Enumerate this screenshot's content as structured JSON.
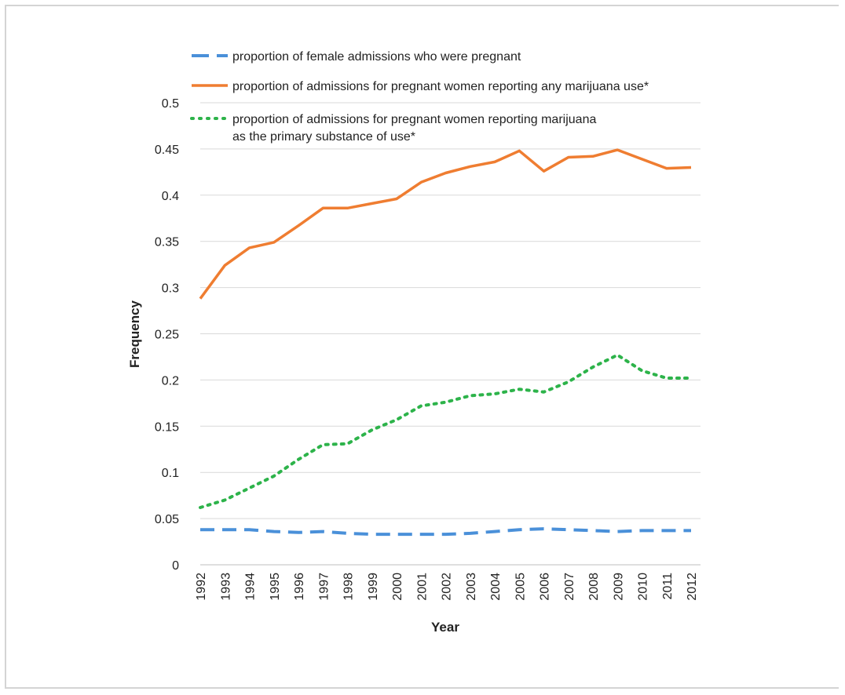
{
  "chart_data": {
    "type": "line",
    "xlabel": "Year",
    "ylabel": "Frequency",
    "ylim": [
      0,
      0.5
    ],
    "yticks": [
      "0",
      "0.05",
      "0.1",
      "0.15",
      "0.2",
      "0.25",
      "0.3",
      "0.35",
      "0.4",
      "0.45",
      "0.5"
    ],
    "grid": "horizontal",
    "legend_position": "top",
    "categories": [
      "1992",
      "1993",
      "1994",
      "1995",
      "1996",
      "1997",
      "1998",
      "1999",
      "2000",
      "2001",
      "2002",
      "2003",
      "2004",
      "2005",
      "2006",
      "2007",
      "2008",
      "2009",
      "2010",
      "2011",
      "2012"
    ],
    "series": [
      {
        "name": "proportion of female admissions who were pregnant",
        "legend_lines": [
          "proportion of female admissions who were pregnant"
        ],
        "color": "#4a90d9",
        "style": "dashed",
        "values": [
          0.038,
          0.038,
          0.038,
          0.036,
          0.035,
          0.036,
          0.034,
          0.033,
          0.033,
          0.033,
          0.033,
          0.034,
          0.036,
          0.038,
          0.039,
          0.038,
          0.037,
          0.036,
          0.037,
          0.037,
          0.037
        ]
      },
      {
        "name": "proportion of admissions for pregnant women reporting any marijuana use*",
        "legend_lines": [
          "proportion of admissions for pregnant women reporting any marijuana use*"
        ],
        "color": "#ef7d31",
        "style": "solid",
        "values": [
          0.288,
          0.324,
          0.343,
          0.349,
          0.367,
          0.386,
          0.386,
          0.391,
          0.396,
          0.414,
          0.424,
          0.431,
          0.436,
          0.448,
          0.426,
          0.441,
          0.442,
          0.449,
          0.439,
          0.429,
          0.43
        ]
      },
      {
        "name": "proportion of admissions for pregnant women reporting marijuana as the primary substance of use*",
        "legend_lines": [
          "proportion of admissions for pregnant women reporting marijuana",
          "as the primary substance of use*"
        ],
        "color": "#2db34a",
        "style": "dotted",
        "values": [
          0.062,
          0.07,
          0.083,
          0.096,
          0.114,
          0.13,
          0.131,
          0.146,
          0.157,
          0.172,
          0.176,
          0.183,
          0.185,
          0.19,
          0.187,
          0.198,
          0.214,
          0.227,
          0.21,
          0.202,
          0.202
        ]
      }
    ]
  }
}
